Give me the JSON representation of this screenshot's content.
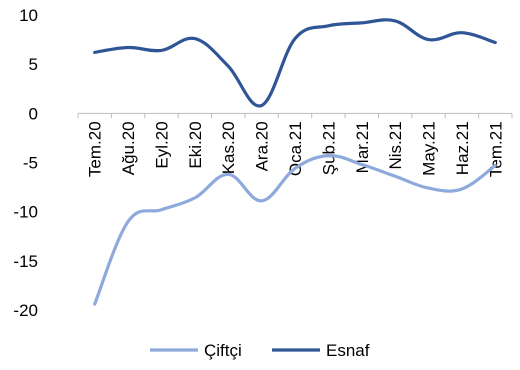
{
  "chart_data": {
    "type": "line",
    "categories": [
      "Tem.20",
      "Ağu.20",
      "Eyl.20",
      "Eki.20",
      "Kas.20",
      "Ara.20",
      "Oca.21",
      "Şub.21",
      "Mar.21",
      "Nis.21",
      "May.21",
      "Haz.21",
      "Tem.21"
    ],
    "series": [
      {
        "name": "Çiftçi",
        "color": "#8EA9DB",
        "values": [
          -19.4,
          -11.0,
          -9.8,
          -8.6,
          -6.2,
          -8.9,
          -5.6,
          -4.3,
          -5.2,
          -6.4,
          -7.6,
          -7.7,
          -5.3
        ]
      },
      {
        "name": "Esnaf",
        "color": "#2F5597",
        "values": [
          6.2,
          6.7,
          6.4,
          7.6,
          4.8,
          0.8,
          7.6,
          8.9,
          9.2,
          9.4,
          7.5,
          8.2,
          7.2
        ]
      }
    ],
    "y_ticks": [
      10,
      5,
      0,
      -5,
      -10,
      -15,
      -20
    ],
    "ylim": [
      -20,
      10
    ],
    "grid": false,
    "legend_position": "bottom",
    "title": "",
    "xlabel": "",
    "ylabel": ""
  }
}
